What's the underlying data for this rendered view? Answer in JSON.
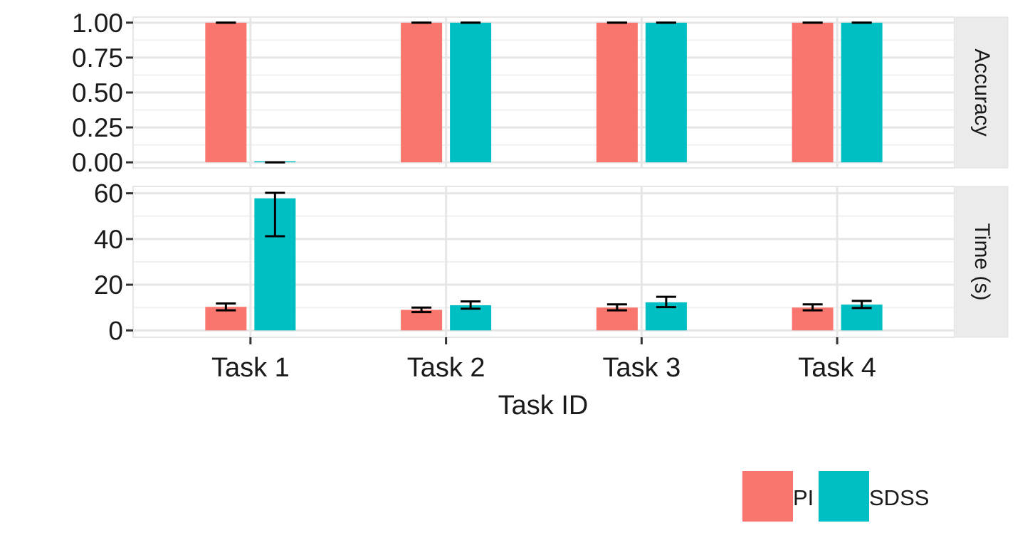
{
  "chart_data": {
    "type": "bar",
    "xlabel": "Task ID",
    "categories": [
      "Task 1",
      "Task 2",
      "Task 3",
      "Task 4"
    ],
    "groups": [
      "PI",
      "SDSS"
    ],
    "colors": {
      "PI": "#F8766D",
      "SDSS": "#00BFC4"
    },
    "grid": true,
    "legend_position": "bottom-right",
    "panels": [
      {
        "strip": "Accuracy",
        "ylim": [
          -0.04,
          1.04
        ],
        "yticks": [
          0,
          0.25,
          0.5,
          0.75,
          1
        ],
        "ytick_labels": [
          "0.00",
          "0.25",
          "0.50",
          "0.75",
          "1.00"
        ],
        "series": [
          {
            "name": "PI",
            "values": [
              1,
              1,
              1,
              1
            ],
            "err_low": [
              1,
              1,
              1,
              1
            ],
            "err_high": [
              1,
              1,
              1,
              1
            ]
          },
          {
            "name": "SDSS",
            "values": [
              0,
              1,
              1,
              1
            ],
            "err_low": [
              0,
              1,
              1,
              1
            ],
            "err_high": [
              0,
              1,
              1,
              1
            ]
          }
        ]
      },
      {
        "strip": "Time (s)",
        "ylim": [
          -3,
          63
        ],
        "yticks": [
          0,
          20,
          40,
          60
        ],
        "ytick_labels": [
          "0",
          "20",
          "40",
          "60"
        ],
        "series": [
          {
            "name": "PI",
            "values": [
              10.3,
              9.0,
              10.0,
              10.0
            ],
            "err_low": [
              8.8,
              8.0,
              8.8,
              8.8
            ],
            "err_high": [
              11.8,
              10.0,
              11.4,
              11.4
            ]
          },
          {
            "name": "SDSS",
            "values": [
              57.8,
              11.0,
              12.3,
              11.3
            ],
            "err_low": [
              41.2,
              9.5,
              10.2,
              9.8
            ],
            "err_high": [
              60.2,
              12.7,
              14.7,
              12.9
            ]
          }
        ]
      }
    ]
  }
}
